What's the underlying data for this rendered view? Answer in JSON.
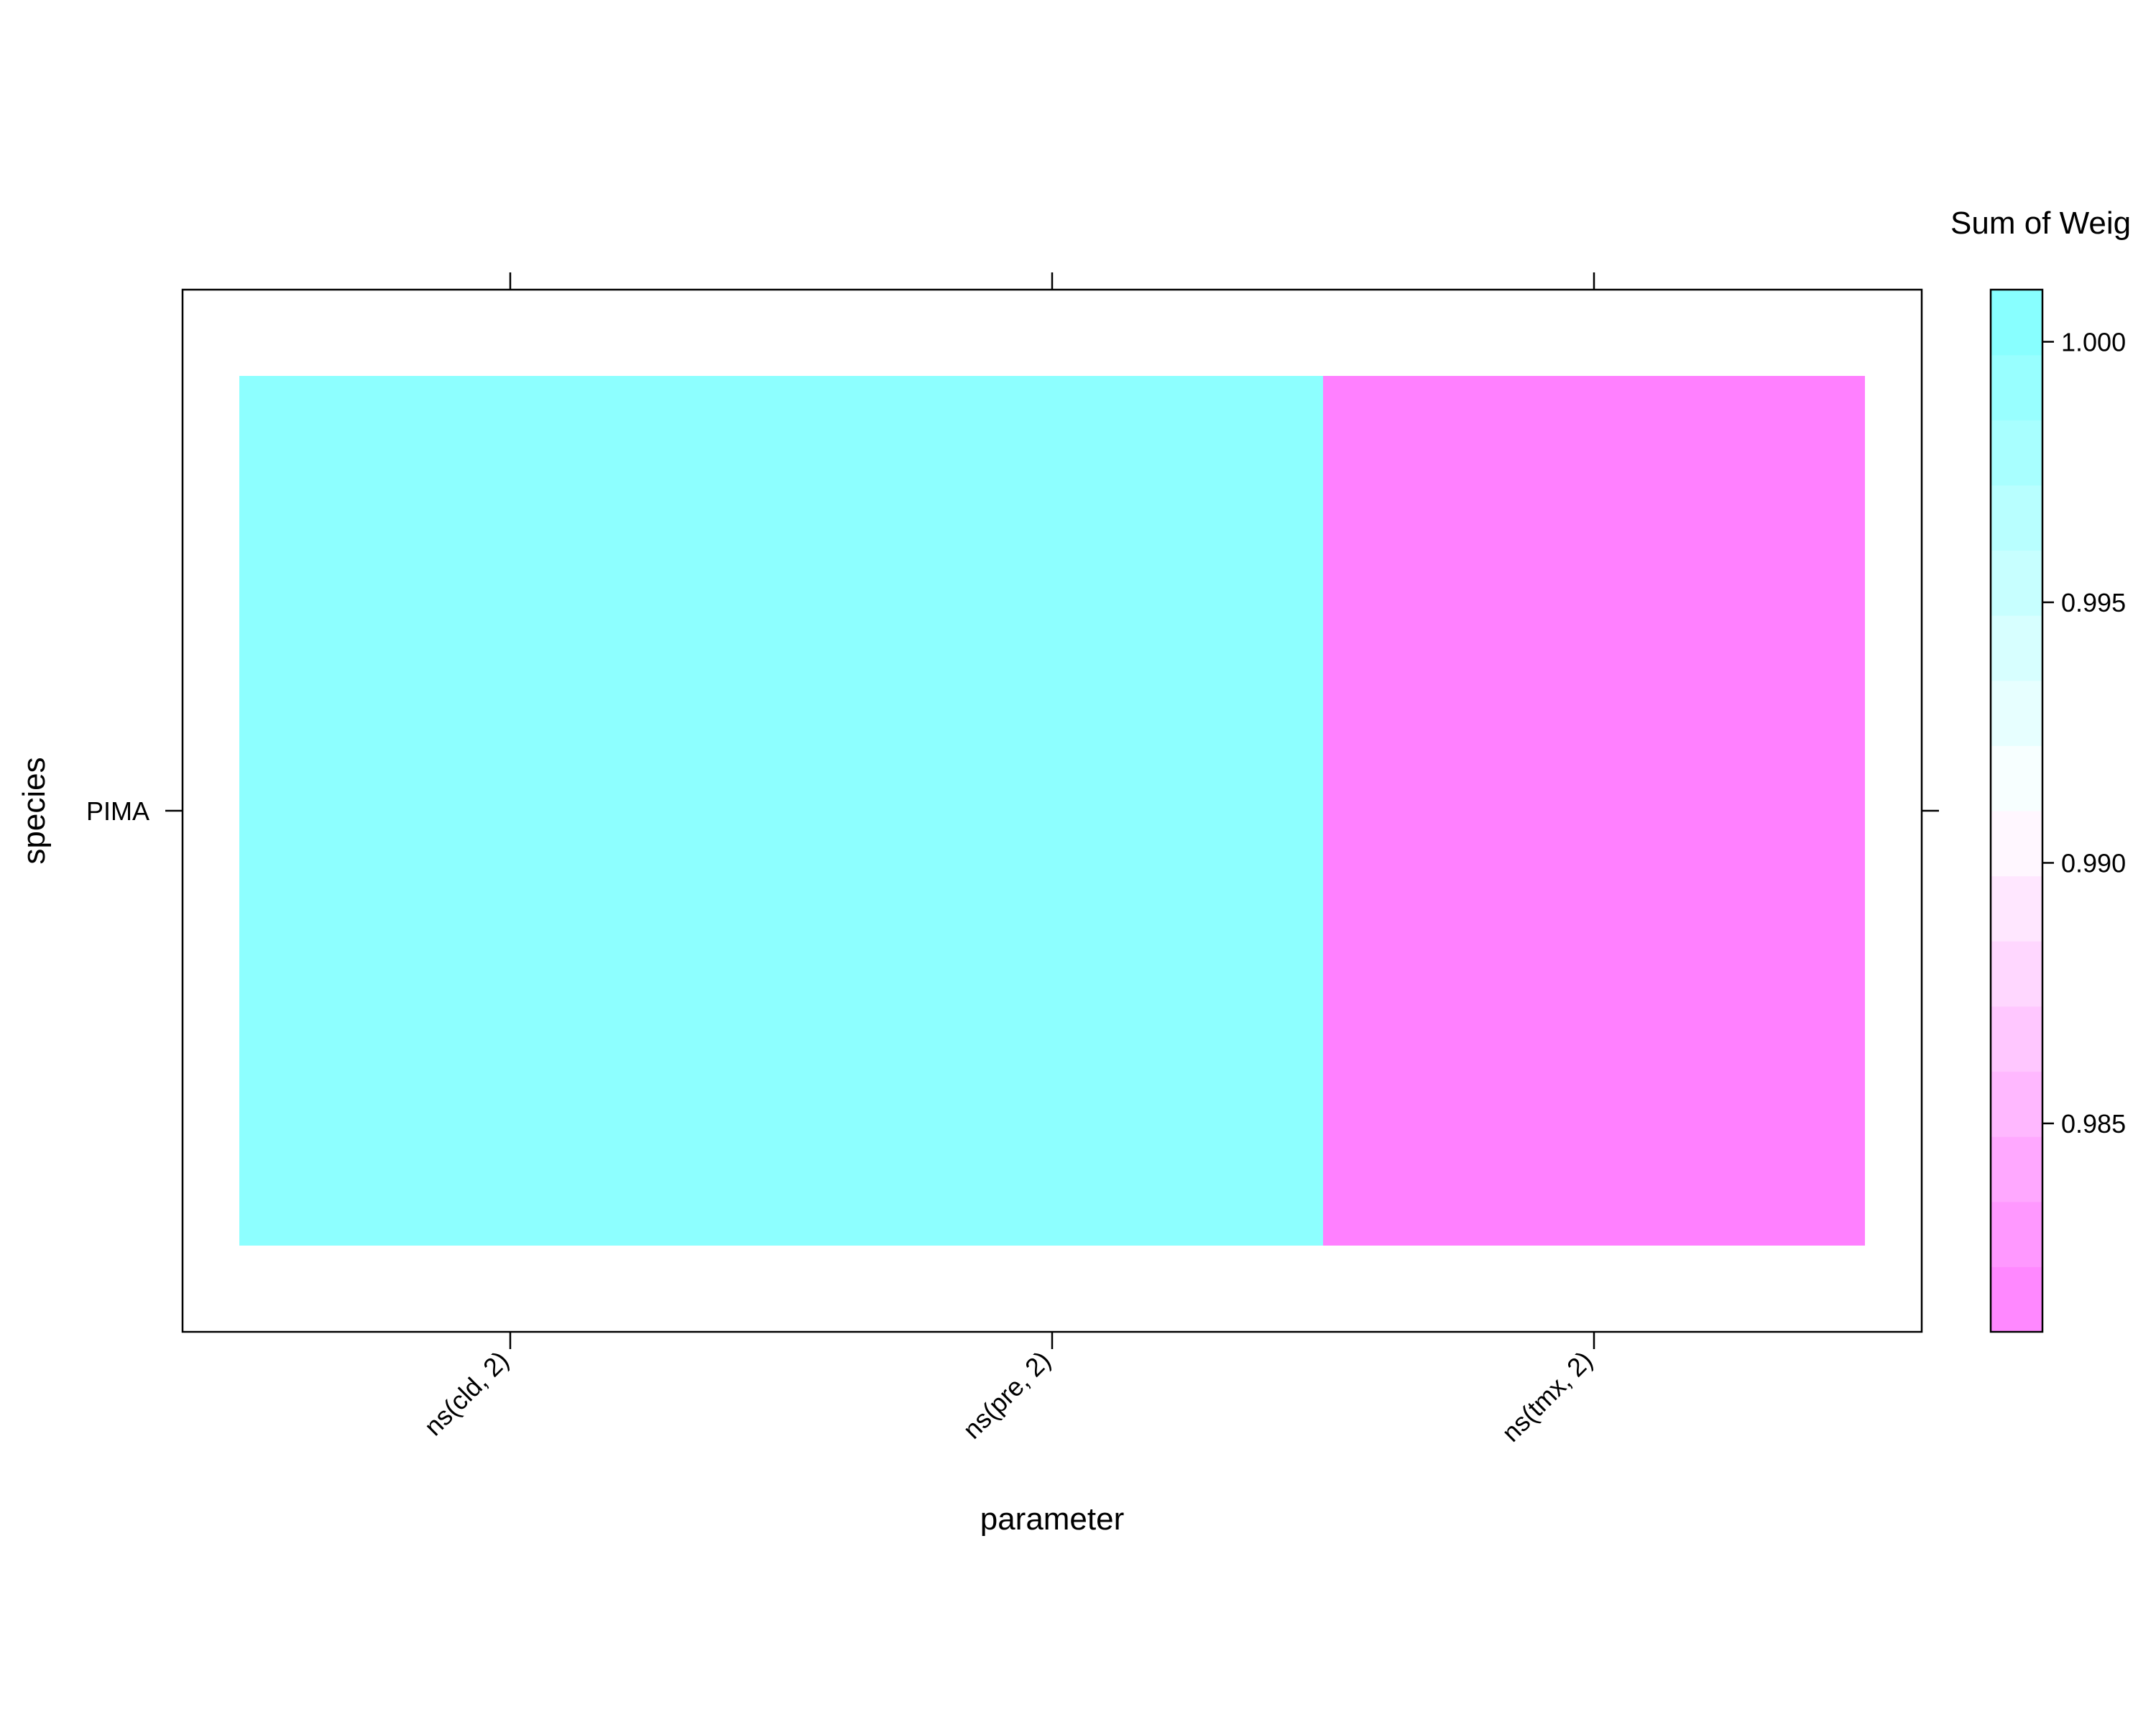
{
  "chart_data": {
    "type": "heatmap",
    "xlabel": "parameter",
    "ylabel": "species",
    "x_categories": [
      "ns(cld, 2)",
      "ns(pre, 2)",
      "ns(tmx, 2)"
    ],
    "y_categories": [
      "PIMA"
    ],
    "cells": [
      {
        "x": "ns(cld, 2)",
        "y": "PIMA",
        "value": 1.0
      },
      {
        "x": "ns(pre, 2)",
        "y": "PIMA",
        "value": 1.0
      },
      {
        "x": "ns(tmx, 2)",
        "y": "PIMA",
        "value": 0.981
      }
    ],
    "colorbar": {
      "title": "Sum of Weig",
      "range": [
        0.981,
        1.001
      ],
      "ticks": [
        0.985,
        0.99,
        0.995,
        1.0
      ],
      "tick_labels": [
        "0.985",
        "0.990",
        "0.995",
        "1.000"
      ],
      "low_color": "#ff80ff",
      "mid_color": "#ffffff",
      "high_color": "#80ffff"
    },
    "grid": false,
    "legend": "right"
  }
}
